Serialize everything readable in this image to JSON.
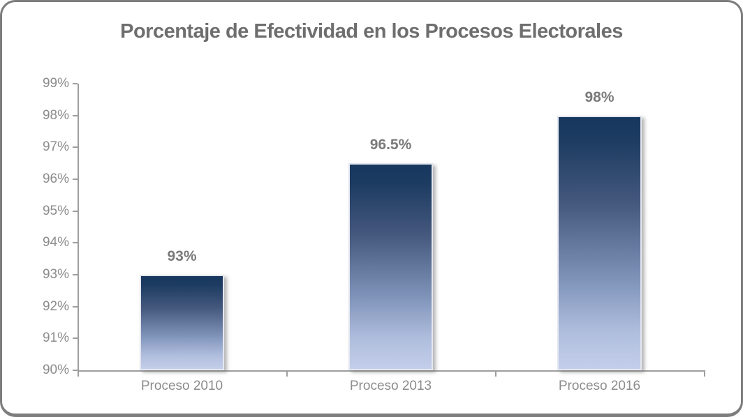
{
  "chart_data": {
    "type": "bar",
    "title": "Porcentaje de Efectividad en los Procesos Electorales",
    "categories": [
      "Proceso 2010",
      "Proceso 2013",
      "Proceso 2016"
    ],
    "values": [
      93,
      96.5,
      98
    ],
    "value_labels": [
      "93%",
      "96.5%",
      "98%"
    ],
    "xlabel": "",
    "ylabel": "",
    "ylim": [
      90,
      99
    ],
    "ytick_step": 1,
    "ytick_labels": [
      "90%",
      "91%",
      "92%",
      "93%",
      "94%",
      "95%",
      "96%",
      "97%",
      "98%",
      "99%"
    ],
    "grid": false,
    "legend": "none",
    "colors": {
      "bar_gradient_top": "#17375e",
      "bar_gradient_bottom": "#c3ceea",
      "bar_border": "#e4e7ef",
      "axis": "#9e9e9e",
      "title_text": "#6e6e6e",
      "value_label_text": "#7a7a7a",
      "tick_label_text": "#8c8c8c",
      "frame_border": "#7d7d7d",
      "background": "#ffffff"
    }
  }
}
